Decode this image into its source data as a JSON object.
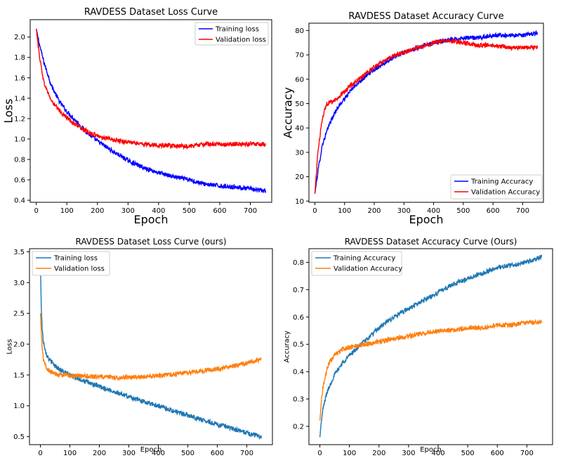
{
  "chart_data": [
    {
      "type": "line",
      "title": "RAVDESS Dataset Loss Curve",
      "xlabel": "Epoch",
      "ylabel": "Loss",
      "xlim": [
        -20,
        770
      ],
      "ylim": [
        0.38,
        2.17
      ],
      "xticks": [
        0,
        100,
        200,
        300,
        400,
        500,
        600,
        700
      ],
      "yticks": [
        0.4,
        0.6,
        0.8,
        1.0,
        1.2,
        1.4,
        1.6,
        1.8,
        2.0
      ],
      "ytick_labels": [
        "0.4",
        "0.6",
        "0.8",
        "1.0",
        "1.2",
        "1.4",
        "1.6",
        "1.8",
        "2.0"
      ],
      "grid": false,
      "legend_position": "upper right",
      "series": [
        {
          "name": "Training loss",
          "color": "#0000ff",
          "x": [
            0,
            10,
            25,
            50,
            75,
            100,
            125,
            150,
            175,
            200,
            250,
            300,
            350,
            400,
            450,
            500,
            550,
            600,
            650,
            700,
            750
          ],
          "y": [
            2.08,
            1.93,
            1.75,
            1.52,
            1.37,
            1.27,
            1.19,
            1.11,
            1.04,
            0.98,
            0.88,
            0.79,
            0.72,
            0.67,
            0.63,
            0.6,
            0.56,
            0.54,
            0.53,
            0.51,
            0.49
          ]
        },
        {
          "name": "Validation loss",
          "color": "#ff0000",
          "x": [
            0,
            10,
            25,
            50,
            75,
            100,
            125,
            150,
            175,
            200,
            250,
            300,
            350,
            400,
            450,
            500,
            550,
            600,
            650,
            700,
            750
          ],
          "y": [
            2.08,
            1.82,
            1.55,
            1.37,
            1.28,
            1.21,
            1.15,
            1.1,
            1.06,
            1.03,
            0.99,
            0.97,
            0.95,
            0.94,
            0.93,
            0.93,
            0.95,
            0.95,
            0.95,
            0.95,
            0.95
          ]
        }
      ]
    },
    {
      "type": "line",
      "title": "RAVDESS Dataset Accuracy Curve",
      "xlabel": "Epoch",
      "ylabel": "Accuracy",
      "xlim": [
        -20,
        770
      ],
      "ylim": [
        9.5,
        83
      ],
      "xticks": [
        0,
        100,
        200,
        300,
        400,
        500,
        600,
        700
      ],
      "yticks": [
        10,
        20,
        30,
        40,
        50,
        60,
        70,
        80
      ],
      "ytick_labels": [
        "10",
        "20",
        "30",
        "40",
        "50",
        "60",
        "70",
        "80"
      ],
      "grid": false,
      "legend_position": "lower right",
      "series": [
        {
          "name": "Training Accuracy",
          "color": "#0000ff",
          "x": [
            0,
            10,
            25,
            50,
            75,
            100,
            125,
            150,
            200,
            250,
            300,
            350,
            400,
            450,
            500,
            550,
            600,
            650,
            700,
            750
          ],
          "y": [
            13,
            22,
            33,
            42,
            48,
            52,
            56,
            59,
            64,
            68,
            71,
            73,
            75,
            76,
            77,
            77,
            78,
            78,
            78,
            79
          ]
        },
        {
          "name": "Validation Accuracy",
          "color": "#ff0000",
          "x": [
            0,
            10,
            25,
            40,
            60,
            75,
            100,
            125,
            150,
            200,
            250,
            300,
            350,
            400,
            450,
            500,
            550,
            600,
            650,
            700,
            750
          ],
          "y": [
            13,
            30,
            44,
            50,
            51,
            52,
            55,
            58,
            60,
            65,
            69,
            71,
            73,
            75,
            76,
            75,
            74,
            74,
            73,
            73,
            73
          ]
        }
      ]
    },
    {
      "type": "line",
      "title": "RAVDESS Dataset Loss Curve (ours)",
      "xlabel": "Epoch",
      "ylabel": "Loss",
      "xlim": [
        -37,
        787
      ],
      "ylim": [
        0.37,
        3.55
      ],
      "xticks": [
        0,
        100,
        200,
        300,
        400,
        500,
        600,
        700
      ],
      "yticks": [
        0.5,
        1.0,
        1.5,
        2.0,
        2.5,
        3.0,
        3.5
      ],
      "ytick_labels": [
        "0.5",
        "1.0",
        "1.5",
        "2.0",
        "2.5",
        "3.0",
        "3.5"
      ],
      "grid": false,
      "legend_position": "upper left",
      "series": [
        {
          "name": "Training loss",
          "color": "#1f77b4",
          "x": [
            0,
            3,
            6,
            10,
            20,
            30,
            50,
            75,
            100,
            150,
            200,
            250,
            300,
            350,
            400,
            450,
            500,
            550,
            600,
            650,
            700,
            750
          ],
          "y": [
            3.3,
            2.6,
            2.25,
            2.05,
            1.85,
            1.75,
            1.65,
            1.56,
            1.5,
            1.4,
            1.31,
            1.23,
            1.15,
            1.07,
            1.0,
            0.92,
            0.85,
            0.77,
            0.7,
            0.63,
            0.56,
            0.5
          ]
        },
        {
          "name": "Validation loss",
          "color": "#ff7f0e",
          "x": [
            0,
            3,
            6,
            10,
            20,
            30,
            50,
            75,
            100,
            150,
            200,
            250,
            300,
            350,
            400,
            450,
            500,
            550,
            600,
            650,
            700,
            750
          ],
          "y": [
            2.5,
            2.2,
            1.95,
            1.75,
            1.62,
            1.56,
            1.52,
            1.5,
            1.49,
            1.48,
            1.47,
            1.46,
            1.46,
            1.47,
            1.49,
            1.51,
            1.54,
            1.57,
            1.6,
            1.64,
            1.69,
            1.76
          ]
        }
      ]
    },
    {
      "type": "line",
      "title": "RAVDESS Dataset Accuracy Curve (Ours)",
      "xlabel": "Epoch",
      "ylabel": "Accuracy",
      "xlim": [
        -37,
        787
      ],
      "ylim": [
        0.133,
        0.85
      ],
      "xticks": [
        0,
        100,
        200,
        300,
        400,
        500,
        600,
        700
      ],
      "yticks": [
        0.2,
        0.3,
        0.4,
        0.5,
        0.6,
        0.7,
        0.8
      ],
      "ytick_labels": [
        "0.2",
        "0.3",
        "0.4",
        "0.5",
        "0.6",
        "0.7",
        "0.8"
      ],
      "grid": false,
      "legend_position": "upper left",
      "series": [
        {
          "name": "Training Accuracy",
          "color": "#1f77b4",
          "x": [
            0,
            5,
            10,
            20,
            30,
            50,
            75,
            100,
            150,
            200,
            250,
            300,
            350,
            400,
            450,
            500,
            550,
            600,
            650,
            700,
            750
          ],
          "y": [
            0.16,
            0.22,
            0.26,
            0.31,
            0.34,
            0.39,
            0.43,
            0.46,
            0.51,
            0.56,
            0.6,
            0.63,
            0.66,
            0.69,
            0.72,
            0.74,
            0.76,
            0.78,
            0.79,
            0.8,
            0.82
          ]
        },
        {
          "name": "Validation Accuracy",
          "color": "#ff7f0e",
          "x": [
            0,
            5,
            10,
            20,
            30,
            50,
            75,
            100,
            150,
            200,
            250,
            300,
            350,
            400,
            450,
            500,
            550,
            600,
            650,
            700,
            750
          ],
          "y": [
            0.22,
            0.29,
            0.34,
            0.39,
            0.43,
            0.46,
            0.48,
            0.49,
            0.5,
            0.51,
            0.52,
            0.53,
            0.54,
            0.55,
            0.55,
            0.56,
            0.56,
            0.57,
            0.57,
            0.58,
            0.58
          ]
        }
      ]
    }
  ]
}
